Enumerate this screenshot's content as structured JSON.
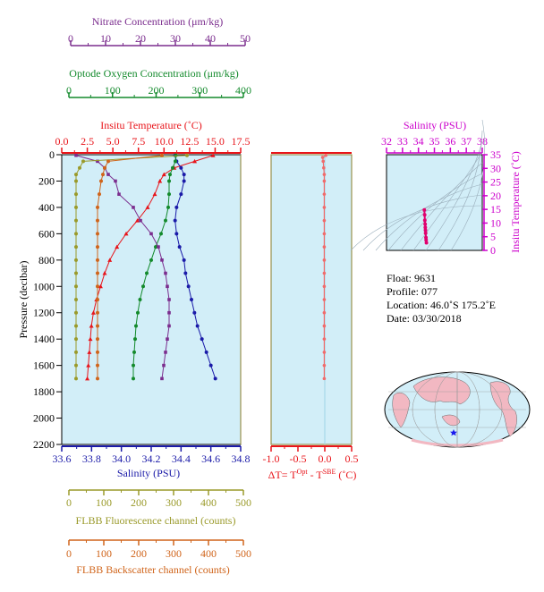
{
  "axes": {
    "nitrate": {
      "label": "Nitrate Concentration (μm/kg)",
      "range": [
        0,
        50
      ],
      "ticks": [
        0,
        10,
        20,
        30,
        40,
        50
      ],
      "color": "#7b2d8e"
    },
    "oxygen": {
      "label": "Optode Oxygen Concentration (μm/kg)",
      "range": [
        0,
        400
      ],
      "ticks": [
        0,
        100,
        200,
        300,
        400
      ],
      "color": "#138a2c"
    },
    "temperature": {
      "label": "Insitu Temperature (˚C)",
      "range": [
        0,
        17.5
      ],
      "ticks": [
        "0.0",
        "2.5",
        "5.0",
        "7.5",
        "10.0",
        "12.5",
        "15.0",
        "17.5"
      ],
      "color": "#e8141a"
    },
    "pressure": {
      "label": "Pressure (decibar)",
      "range": [
        0,
        2200
      ],
      "ticks": [
        0,
        200,
        400,
        600,
        800,
        1000,
        1200,
        1400,
        1600,
        1800,
        2000,
        2200
      ],
      "color": "#000000"
    },
    "salinity": {
      "label": "Salinity (PSU)",
      "range": [
        33.6,
        34.8
      ],
      "ticks": [
        "33.6",
        "33.8",
        "34.0",
        "34.2",
        "34.4",
        "34.6",
        "34.8"
      ],
      "color": "#1a1aa8"
    },
    "fluorescence": {
      "label": "FLBB Fluorescence channel (counts)",
      "range": [
        0,
        500
      ],
      "ticks": [
        0,
        100,
        200,
        300,
        400,
        500
      ],
      "color": "#9a9a2a"
    },
    "backscatter": {
      "label": "FLBB Backscatter channel (counts)",
      "range": [
        0,
        500
      ],
      "ticks": [
        0,
        100,
        200,
        300,
        400,
        500
      ],
      "color": "#d0641a"
    },
    "deltaT": {
      "label_prefix": "ΔT= T",
      "sup1": "Opt",
      "mid": " - T",
      "sup2": "SBE",
      "label_suffix": " (˚C)",
      "range": [
        -1.0,
        0.5
      ],
      "ticks": [
        "-1.0",
        "-0.5",
        "0.0",
        "0.5"
      ],
      "color": "#e8141a"
    },
    "ts_salinity": {
      "label": "Salinity (PSU)",
      "range": [
        32,
        38
      ],
      "ticks": [
        32,
        33,
        34,
        35,
        36,
        37,
        38
      ],
      "color": "#cc00cc"
    },
    "ts_temperature": {
      "label": "Insitu Temperature (˚C)",
      "range": [
        0,
        35
      ],
      "ticks": [
        0,
        5,
        10,
        15,
        20,
        25,
        30,
        35
      ],
      "color": "#cc00cc"
    }
  },
  "info": {
    "float": "Float:  9631",
    "profile": "Profile:  077",
    "location": "Location:  46.0˚S  175.2˚E",
    "date": "Date:  03/30/2018"
  },
  "chart_data": {
    "type": "line",
    "pressure": [
      5,
      50,
      100,
      150,
      200,
      300,
      400,
      500,
      600,
      700,
      800,
      900,
      1000,
      1100,
      1200,
      1300,
      1400,
      1500,
      1600,
      1700
    ],
    "series": [
      {
        "key": "temperature",
        "color": "#e8141a",
        "marker": "triangle",
        "values": [
          14.8,
          13.0,
          11.0,
          10.0,
          9.6,
          9.1,
          8.4,
          7.4,
          6.3,
          5.4,
          4.7,
          4.2,
          3.8,
          3.4,
          3.1,
          2.9,
          2.8,
          2.7,
          2.6,
          2.5
        ]
      },
      {
        "key": "salinity",
        "color": "#1a1aa8",
        "marker": "circle",
        "values": [
          34.36,
          34.37,
          34.4,
          34.42,
          34.42,
          34.4,
          34.37,
          34.36,
          34.37,
          34.39,
          34.42,
          34.43,
          34.45,
          34.47,
          34.49,
          34.51,
          34.54,
          34.57,
          34.6,
          34.63
        ]
      },
      {
        "key": "oxygen",
        "color": "#138a2c",
        "marker": "circle",
        "values": [
          255,
          254,
          248,
          242,
          240,
          240,
          238,
          232,
          222,
          210,
          200,
          190,
          182,
          175,
          170,
          166,
          164,
          162,
          160,
          160
        ]
      },
      {
        "key": "nitrate",
        "color": "#7b2d8e",
        "marker": "square",
        "values": [
          4,
          10,
          12,
          13,
          15,
          16,
          20,
          22,
          25,
          27,
          28,
          29,
          29.5,
          30,
          30,
          30,
          29.5,
          29,
          28.5,
          28
        ]
      },
      {
        "key": "fluorescence",
        "color": "#9a9a2a",
        "marker": "circle",
        "values": [
          350,
          60,
          50,
          40,
          40,
          40,
          40,
          40,
          40,
          40,
          40,
          40,
          40,
          40,
          40,
          40,
          40,
          40,
          40,
          40
        ]
      },
      {
        "key": "backscatter",
        "color": "#d0641a",
        "marker": "circle",
        "values": [
          280,
          130,
          120,
          115,
          110,
          105,
          100,
          100,
          100,
          100,
          100,
          100,
          100,
          100,
          100,
          100,
          100,
          100,
          100,
          100
        ]
      }
    ],
    "deltaT": {
      "pressure": [
        5,
        20,
        50,
        100,
        150,
        200,
        300,
        400,
        500,
        600,
        700,
        800,
        900,
        1000,
        1100,
        1200,
        1300,
        1400,
        1500,
        1600,
        1700
      ],
      "values": [
        0.02,
        -0.04,
        -0.03,
        -0.02,
        -0.01,
        -0.01,
        -0.01,
        -0.01,
        -0.01,
        -0.01,
        -0.01,
        -0.01,
        -0.01,
        -0.01,
        -0.01,
        -0.01,
        -0.01,
        -0.01,
        -0.01,
        -0.01,
        -0.01
      ]
    },
    "ts": {
      "salinity": [
        34.37,
        34.39,
        34.4,
        34.42,
        34.43,
        34.44,
        34.45,
        34.47,
        34.48,
        34.5
      ],
      "temperature": [
        14.8,
        13.0,
        11.0,
        9.6,
        8.4,
        7.4,
        6.3,
        4.7,
        3.8,
        2.8
      ]
    }
  }
}
